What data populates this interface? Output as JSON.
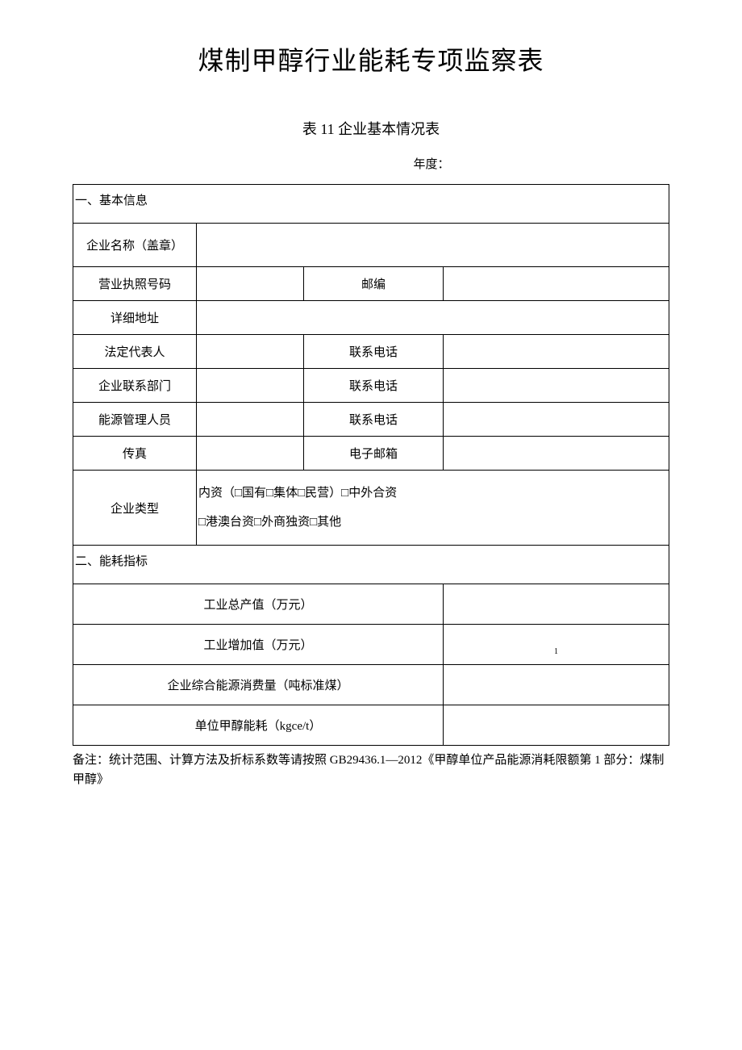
{
  "page": {
    "main_title": "煤制甲醇行业能耗专项监察表",
    "sub_title": "表 11 企业基本情况表",
    "year_label": "年度：",
    "footnote": "备注：统计范围、计算方法及折标系数等请按照 GB29436.1—2012《甲醇单位产品能源消耗限额第 1 部分：煤制甲醇》"
  },
  "section1": {
    "header": "一、基本信息",
    "rows": {
      "company_name": {
        "label": "企业名称（盖章）",
        "value": ""
      },
      "license": {
        "label": "营业执照号码",
        "value": "",
        "label2": "邮编",
        "value2": ""
      },
      "address": {
        "label": "详细地址",
        "value": ""
      },
      "legal_rep": {
        "label": "法定代表人",
        "value": "",
        "label2": "联系电话",
        "value2": ""
      },
      "contact_dept": {
        "label": "企业联系部门",
        "value": "",
        "label2": "联系电话",
        "value2": ""
      },
      "energy_mgr": {
        "label": "能源管理人员",
        "value": "",
        "label2": "联系电话",
        "value2": ""
      },
      "fax": {
        "label": "传真",
        "value": "",
        "label2": "电子邮箱",
        "value2": ""
      },
      "company_type": {
        "label": "企业类型",
        "line1": "内资（□国有□集体□民营）□中外合资",
        "line2": "□港澳台资□外商独资□其他"
      }
    }
  },
  "section2": {
    "header": "二、能耗指标",
    "rows": {
      "gross_output": {
        "label": "工业总产值（万元）",
        "value": ""
      },
      "value_added": {
        "label": "工业增加值（万元）",
        "value": "1"
      },
      "total_energy": {
        "label": "企业综合能源消费量（吨标准煤）",
        "value": ""
      },
      "unit_methanol": {
        "label": "单位甲醇能耗（kgce/t）",
        "value": ""
      }
    }
  },
  "colors": {
    "text": "#000000",
    "border": "#000000",
    "background": "#ffffff"
  }
}
